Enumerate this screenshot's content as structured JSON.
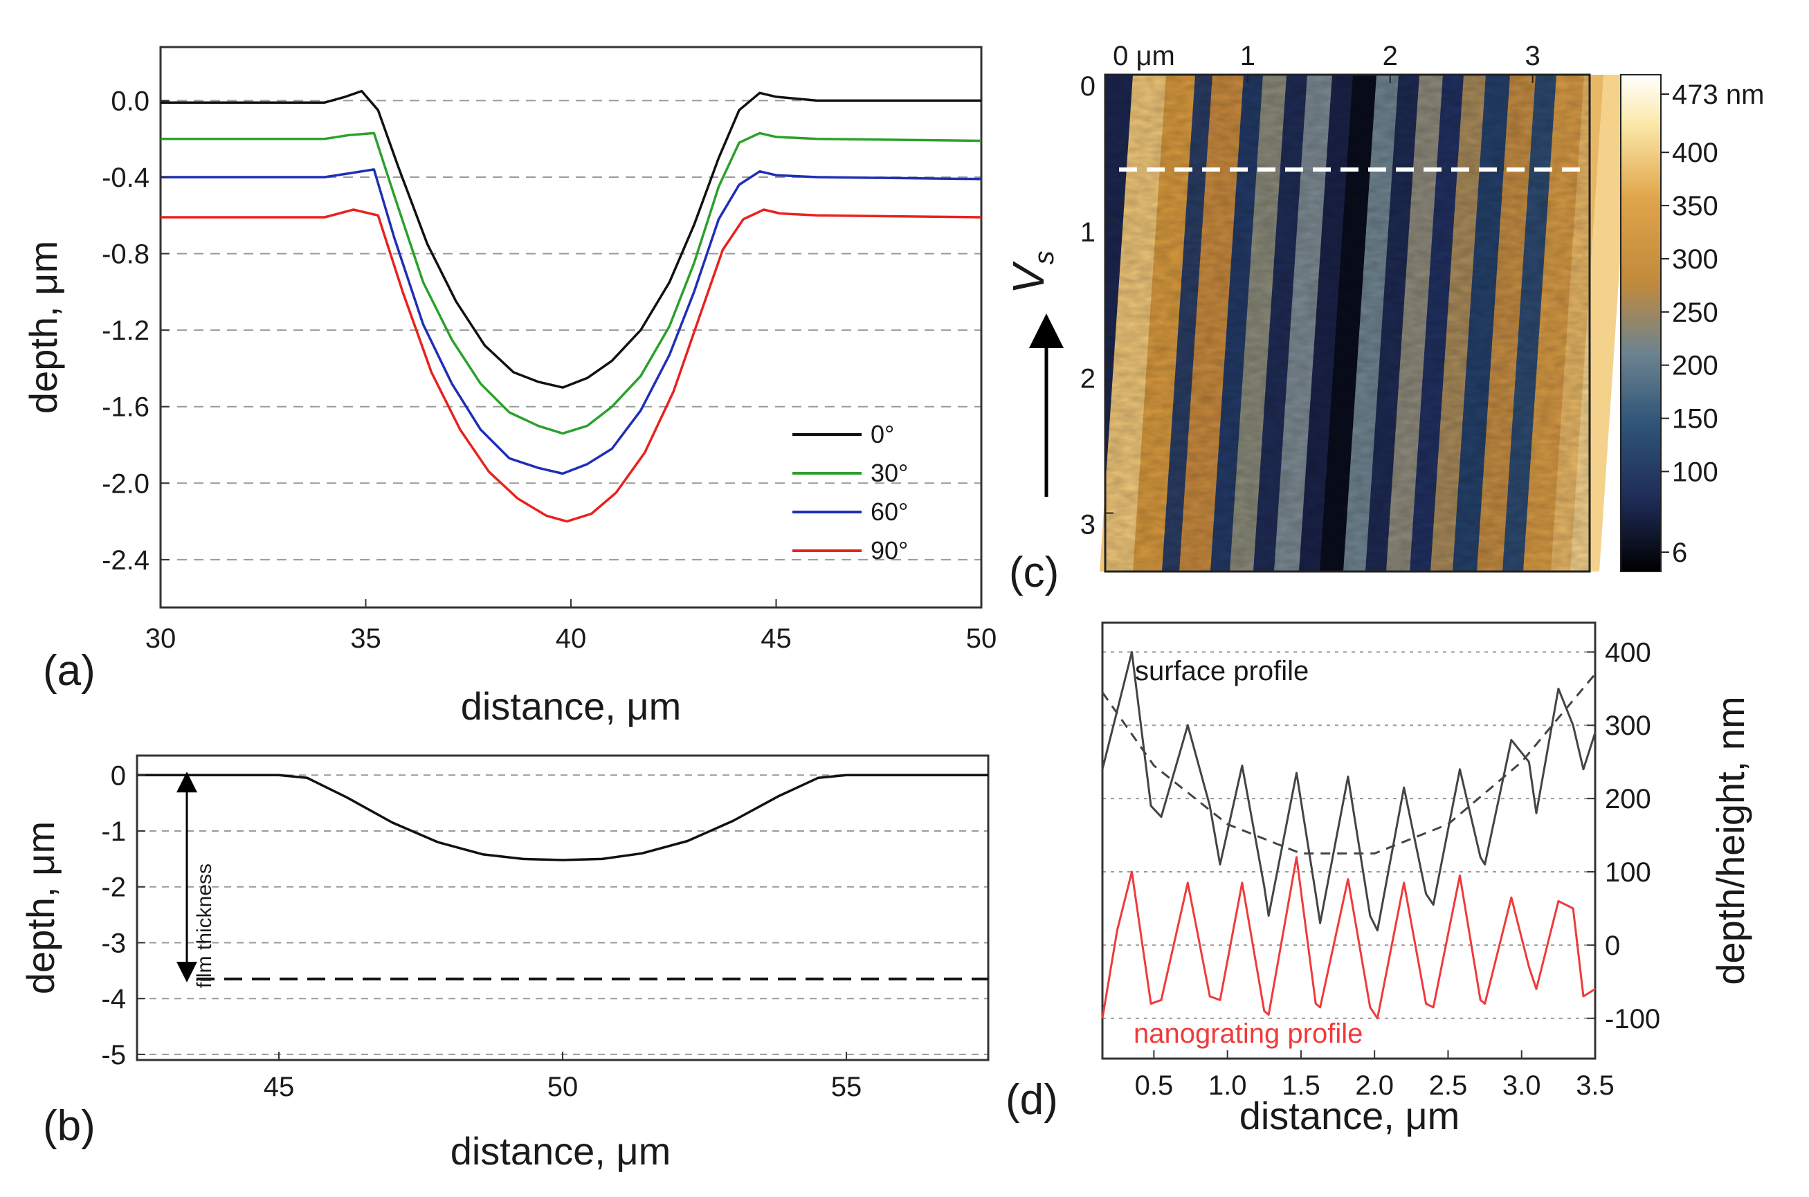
{
  "chart_data": [
    {
      "panel": "(a)",
      "type": "line",
      "xlabel": "distance, μm",
      "ylabel": "depth, μm",
      "xlim": [
        30,
        50
      ],
      "ylim": [
        -2.65,
        0.28
      ],
      "xticks": [
        30,
        35,
        40,
        45,
        50
      ],
      "yticks": [
        0.0,
        -0.4,
        -0.8,
        -1.2,
        -1.6,
        -2.0,
        -2.4
      ],
      "ytick_labels": [
        "0.0",
        "-0.4",
        "-0.8",
        "-1.2",
        "-1.6",
        "-2.0",
        "-2.4"
      ],
      "grid": "horizontal dashed",
      "legend_placement": "bottom-right",
      "series": [
        {
          "name": "0°",
          "color": "#111111",
          "x": [
            30,
            34,
            34.5,
            34.9,
            35.3,
            35.8,
            36.5,
            37.2,
            37.9,
            38.6,
            39.2,
            39.8,
            40.4,
            41.0,
            41.7,
            42.4,
            43.0,
            43.6,
            44.1,
            44.6,
            45.0,
            46,
            50
          ],
          "y": [
            -0.01,
            -0.01,
            0.02,
            0.05,
            -0.05,
            -0.35,
            -0.75,
            -1.05,
            -1.28,
            -1.42,
            -1.47,
            -1.5,
            -1.45,
            -1.36,
            -1.2,
            -0.95,
            -0.65,
            -0.3,
            -0.05,
            0.04,
            0.02,
            0.0,
            0.0
          ]
        },
        {
          "name": "30°",
          "color": "#2ca02c",
          "x": [
            30,
            34,
            34.6,
            35.2,
            35.7,
            36.4,
            37.1,
            37.8,
            38.5,
            39.2,
            39.8,
            40.4,
            41.0,
            41.7,
            42.4,
            43.0,
            43.6,
            44.1,
            44.6,
            45.0,
            46,
            50
          ],
          "y": [
            -0.2,
            -0.2,
            -0.18,
            -0.17,
            -0.5,
            -0.95,
            -1.25,
            -1.48,
            -1.63,
            -1.7,
            -1.74,
            -1.7,
            -1.6,
            -1.44,
            -1.18,
            -0.85,
            -0.45,
            -0.22,
            -0.17,
            -0.19,
            -0.2,
            -0.21
          ]
        },
        {
          "name": "60°",
          "color": "#1f2fb4",
          "x": [
            30,
            34,
            34.6,
            35.2,
            35.7,
            36.4,
            37.1,
            37.8,
            38.5,
            39.2,
            39.8,
            40.4,
            41.0,
            41.7,
            42.4,
            43.0,
            43.6,
            44.1,
            44.6,
            45.0,
            46,
            50
          ],
          "y": [
            -0.4,
            -0.4,
            -0.38,
            -0.36,
            -0.72,
            -1.17,
            -1.48,
            -1.72,
            -1.87,
            -1.92,
            -1.95,
            -1.9,
            -1.82,
            -1.62,
            -1.33,
            -1.0,
            -0.62,
            -0.44,
            -0.37,
            -0.39,
            -0.4,
            -0.41
          ]
        },
        {
          "name": "90°",
          "color": "#e8221f",
          "x": [
            30,
            34,
            34.7,
            35.3,
            35.9,
            36.6,
            37.3,
            38.0,
            38.7,
            39.4,
            39.9,
            40.5,
            41.1,
            41.8,
            42.5,
            43.1,
            43.7,
            44.2,
            44.7,
            45.1,
            46,
            50
          ],
          "y": [
            -0.61,
            -0.61,
            -0.57,
            -0.6,
            -1.0,
            -1.42,
            -1.72,
            -1.94,
            -2.08,
            -2.17,
            -2.2,
            -2.16,
            -2.05,
            -1.84,
            -1.52,
            -1.15,
            -0.78,
            -0.62,
            -0.57,
            -0.59,
            -0.6,
            -0.61
          ]
        }
      ]
    },
    {
      "panel": "(b)",
      "type": "line",
      "xlabel": "distance, μm",
      "ylabel": "depth, μm",
      "xlim": [
        42.5,
        57.5
      ],
      "ylim": [
        -5.1,
        0.35
      ],
      "xticks": [
        45,
        50,
        55
      ],
      "yticks": [
        0,
        -1,
        -2,
        -3,
        -4,
        -5
      ],
      "grid": "horizontal dashed",
      "reference_line_depth": -3.65,
      "annotation": "film thickness",
      "series": [
        {
          "color": "#111111",
          "x": [
            42.5,
            45.0,
            45.5,
            46.2,
            47.0,
            47.8,
            48.6,
            49.3,
            50.0,
            50.7,
            51.4,
            52.2,
            53.0,
            53.8,
            54.5,
            55.0,
            57.5
          ],
          "y": [
            0.0,
            0.0,
            -0.05,
            -0.4,
            -0.85,
            -1.2,
            -1.42,
            -1.5,
            -1.52,
            -1.5,
            -1.4,
            -1.18,
            -0.82,
            -0.38,
            -0.05,
            0.0,
            0.0
          ]
        }
      ]
    },
    {
      "panel": "(c)",
      "type": "heatmap",
      "x_unit": "μm",
      "xtick_labels": [
        "0 μm",
        "1",
        "2",
        "3"
      ],
      "ytick_labels": [
        "0",
        "1",
        "2",
        "3"
      ],
      "axis_symbol": "V",
      "axis_symbol_subscript": "s",
      "colorbar_ticks": [
        "473 nm",
        "400",
        "350",
        "300",
        "250",
        "200",
        "150",
        "100",
        "6"
      ],
      "colorbar_values": [
        473,
        400,
        350,
        300,
        250,
        200,
        150,
        100,
        6
      ],
      "colormap": [
        "#000000",
        "#1e2a55",
        "#2f5578",
        "#6d8390",
        "#c08a3c",
        "#e0a44a",
        "#fbe8a8",
        "#ffffff"
      ],
      "profile_line_y": 0.68,
      "xlim": [
        0,
        3.4
      ],
      "ylim": [
        0,
        3.4
      ]
    },
    {
      "panel": "(d)",
      "type": "line",
      "xlabel": "distance, μm",
      "ylabel": "depth/height, nm",
      "xlim": [
        0.15,
        3.5
      ],
      "ylim": [
        -155,
        440
      ],
      "xticks": [
        0.5,
        1.0,
        1.5,
        2.0,
        2.5,
        3.0,
        3.5
      ],
      "xtick_labels": [
        "0.5",
        "1.0",
        "1.5",
        "2.0",
        "2.5",
        "3.0",
        "3.5"
      ],
      "yticks": [
        400,
        300,
        200,
        100,
        0,
        -100
      ],
      "grid": "horizontal dotted",
      "series": [
        {
          "name": "surface profile",
          "color": "#444444",
          "x": [
            0.15,
            0.25,
            0.35,
            0.48,
            0.55,
            0.73,
            0.88,
            0.95,
            1.1,
            1.25,
            1.28,
            1.47,
            1.6,
            1.63,
            1.82,
            1.97,
            2.02,
            2.2,
            2.35,
            2.4,
            2.58,
            2.72,
            2.75,
            2.93,
            3.05,
            3.1,
            3.25,
            3.35,
            3.42,
            3.5
          ],
          "y": [
            240,
            320,
            400,
            190,
            175,
            300,
            190,
            110,
            245,
            80,
            40,
            235,
            70,
            30,
            230,
            40,
            20,
            215,
            70,
            55,
            240,
            120,
            110,
            280,
            250,
            180,
            350,
            300,
            240,
            290
          ]
        },
        {
          "name": "nanograting profile",
          "color": "#f03a3a",
          "x": [
            0.15,
            0.25,
            0.35,
            0.48,
            0.55,
            0.73,
            0.88,
            0.95,
            1.1,
            1.25,
            1.28,
            1.47,
            1.6,
            1.63,
            1.82,
            1.97,
            2.02,
            2.2,
            2.35,
            2.4,
            2.58,
            2.72,
            2.75,
            2.93,
            3.05,
            3.1,
            3.25,
            3.35,
            3.42,
            3.5
          ],
          "y": [
            -100,
            20,
            100,
            -80,
            -75,
            85,
            -70,
            -75,
            85,
            -90,
            -95,
            120,
            -80,
            -85,
            90,
            -85,
            -100,
            85,
            -80,
            -85,
            95,
            -75,
            -80,
            65,
            -30,
            -60,
            60,
            50,
            -70,
            -60
          ]
        },
        {
          "color": "#444444",
          "dashed": true,
          "x": [
            0.15,
            0.5,
            1.0,
            1.5,
            2.0,
            2.5,
            3.0,
            3.5
          ],
          "y": [
            345,
            245,
            165,
            125,
            125,
            165,
            250,
            370
          ]
        }
      ]
    }
  ]
}
